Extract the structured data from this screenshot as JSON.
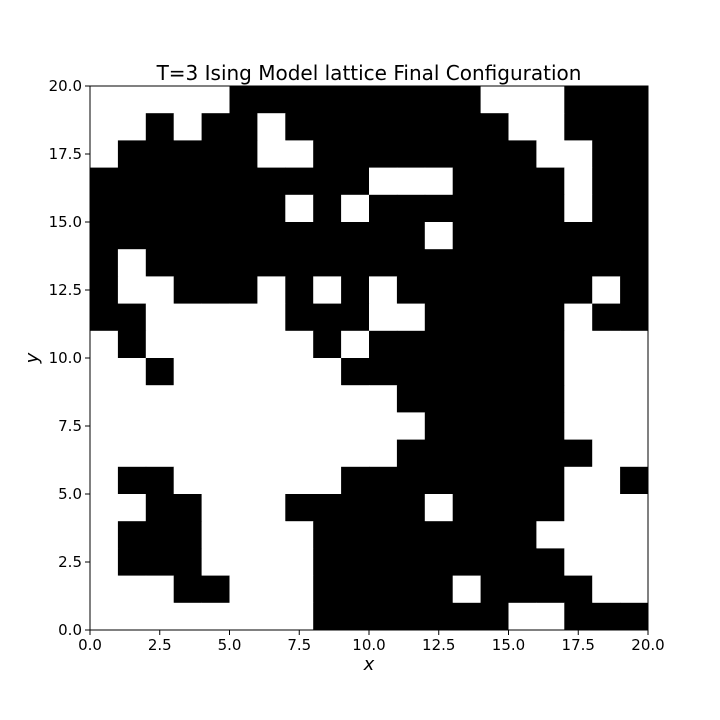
{
  "chart_data": {
    "type": "heatmap",
    "title": "T=3 Ising Model lattice Final Configuration",
    "xlabel": "x",
    "ylabel": "y",
    "xlim": [
      0,
      20
    ],
    "ylim": [
      0,
      20
    ],
    "xticks": [
      "0.0",
      "2.5",
      "5.0",
      "7.5",
      "10.0",
      "12.5",
      "15.0",
      "17.5",
      "20.0"
    ],
    "yticks": [
      "0.0",
      "2.5",
      "5.0",
      "7.5",
      "10.0",
      "12.5",
      "15.0",
      "17.5",
      "20.0"
    ],
    "grid": false,
    "colors": {
      "spin_up": "#000000",
      "spin_down": "#ffffff"
    },
    "rows_top_to_bottom": [
      "00000111111111000111",
      "00101101111111100111",
      "01111100111111110011",
      "11111111110001111011",
      "11111110101111111011",
      "11111111111101111111",
      "10111111111111111111",
      "10011101010111111101",
      "11000001110011111011",
      "01000000101111111000",
      "00100000011111111000",
      "00000000000111111000",
      "00000000000011111000",
      "00000000000111111100",
      "01100000011111111001",
      "00110001111101111000",
      "01110000111111110000",
      "01110000111111111000",
      "00011000111110111100",
      "00000000111111100111"
    ]
  }
}
